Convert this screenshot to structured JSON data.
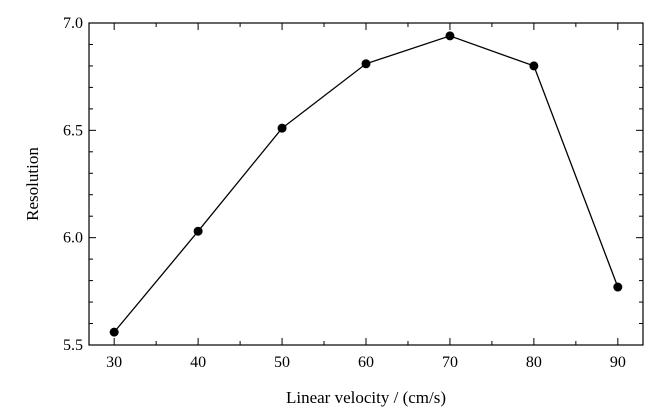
{
  "chart_data": {
    "type": "line",
    "title": "",
    "xlabel": "Linear velocity / (cm/s)",
    "ylabel": "Resolution",
    "xlim": [
      27,
      93
    ],
    "ylim": [
      5.5,
      7.0
    ],
    "x_ticks": [
      30,
      40,
      50,
      60,
      70,
      80,
      90
    ],
    "x_tick_labels": [
      "30",
      "40",
      "50",
      "60",
      "70",
      "80",
      "90"
    ],
    "y_ticks": [
      5.5,
      6.0,
      6.5,
      7.0
    ],
    "y_tick_labels": [
      "5.5",
      "6.0",
      "6.5",
      "7.0"
    ],
    "x_minor_step": 5,
    "y_minor_step": 0.1,
    "grid": false,
    "series": [
      {
        "name": "Resolution",
        "x": [
          30,
          40,
          50,
          60,
          70,
          80,
          90
        ],
        "values": [
          5.56,
          6.03,
          6.51,
          6.81,
          6.94,
          6.8,
          5.77
        ],
        "color": "#000000",
        "marker": "circle"
      }
    ]
  }
}
